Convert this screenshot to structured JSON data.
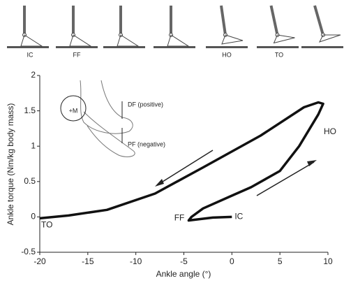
{
  "gait_diagram": {
    "labels": [
      "IC",
      "FF",
      "HO",
      "TO"
    ]
  },
  "inset": {
    "labels": [
      "+M",
      "DF (positive)",
      "PF (negative)"
    ]
  },
  "chart_data": {
    "type": "line",
    "x_label": "Ankle angle (°)",
    "y_label": "Ankle torque (Nm/kg body mass)",
    "x": [
      0,
      -2,
      -4.5,
      -4.2,
      -3,
      0,
      2,
      5,
      7,
      9,
      9.5,
      9,
      7.5,
      3,
      -3,
      -8,
      -13,
      -17,
      -20
    ],
    "values": [
      0,
      -0.01,
      -0.05,
      0.0,
      0.12,
      0.3,
      0.42,
      0.65,
      1.0,
      1.45,
      1.6,
      1.62,
      1.55,
      1.15,
      0.7,
      0.33,
      0.1,
      0.02,
      -0.02
    ],
    "color": "#111111",
    "annotations": [
      "IC",
      "FF",
      "HO",
      "TO"
    ],
    "xlim": [
      -20,
      10
    ],
    "xticks": [
      -20,
      -15,
      -10,
      -5,
      0,
      5,
      10
    ],
    "ylim": [
      -0.5,
      2
    ],
    "yticks": [
      -0.5,
      0,
      0.5,
      1,
      1.5,
      2
    ],
    "grid": false
  }
}
